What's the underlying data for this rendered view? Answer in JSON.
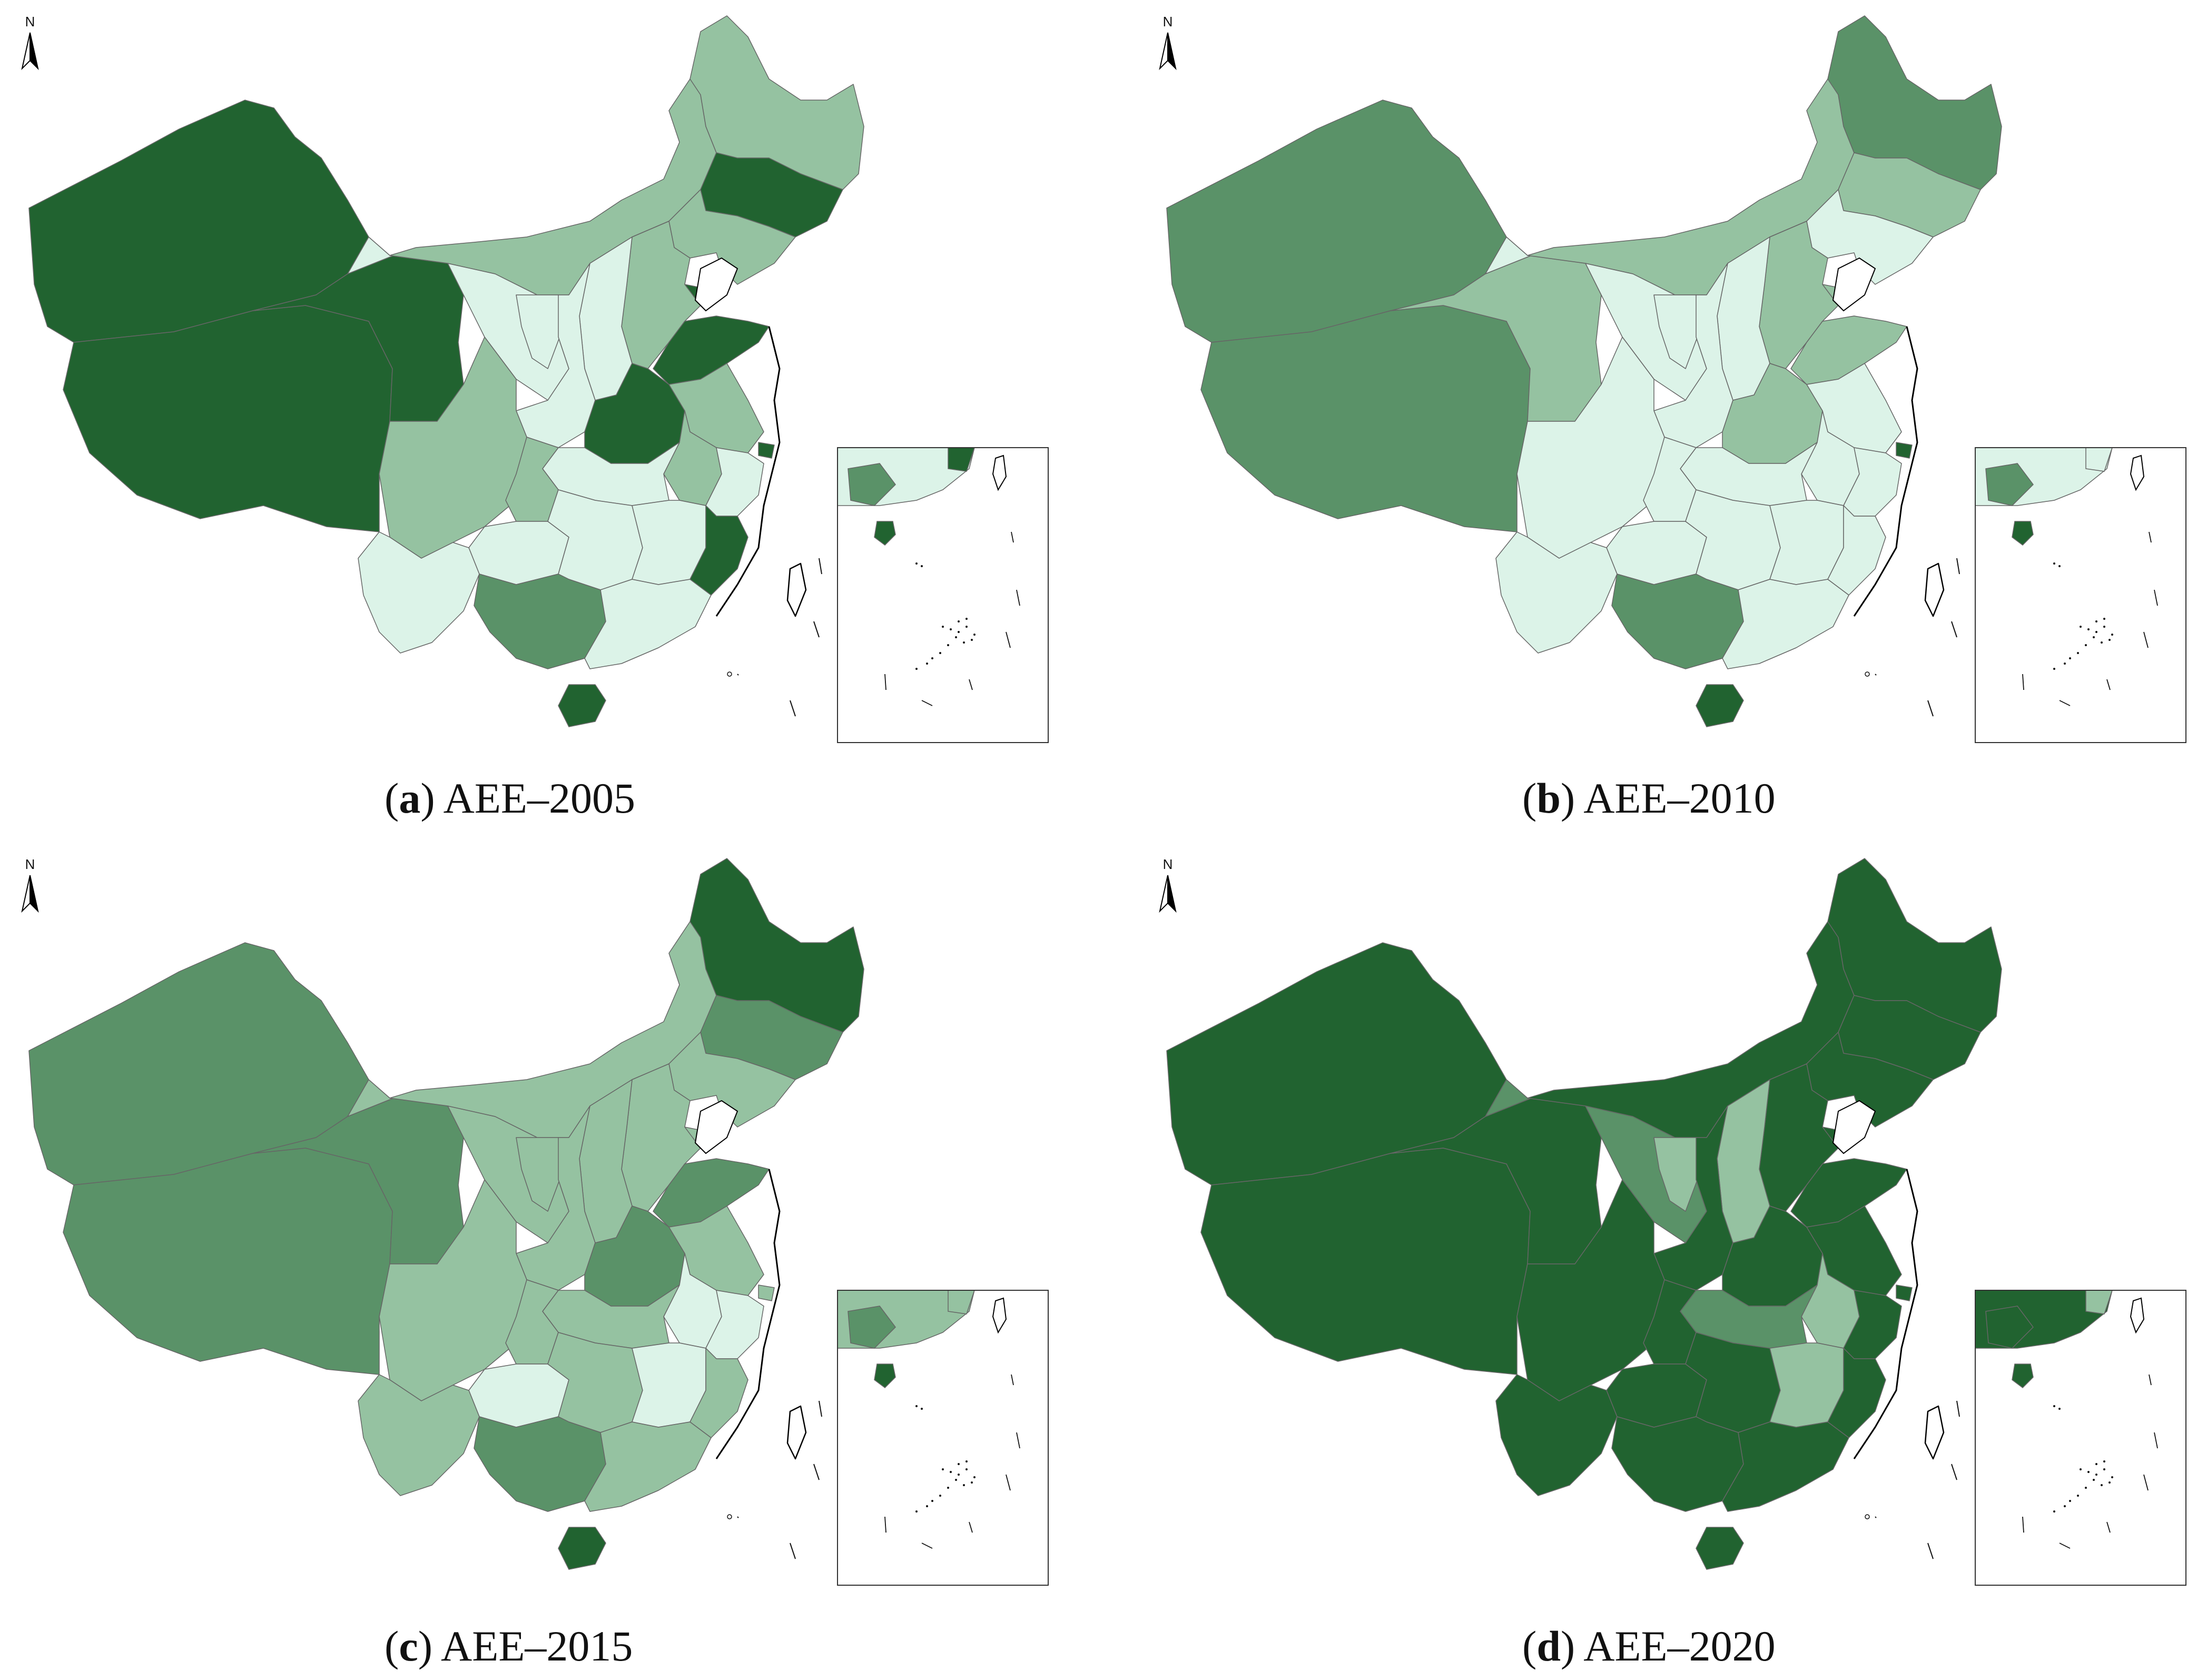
{
  "colors": {
    "very_light": "#dcf3e8",
    "light": "#95c2a1",
    "medium": "#5a9268",
    "dark": "#216330",
    "border": "#666666"
  },
  "north_arrow_label": "N",
  "panels": [
    {
      "id": "a",
      "letter": "a",
      "caption": "AEE–2005",
      "regions": {
        "xinjiang": "dark",
        "tibet": "dark",
        "qinghai": "dark",
        "gansu": "very_light",
        "inner_mongolia": "light",
        "heilongjiang": "light",
        "jilin": "dark",
        "liaoning": "light",
        "beijing": "dark",
        "tianjin": "dark",
        "hebei": "light",
        "shanxi": "very_light",
        "shaanxi": "very_light",
        "ningxia": "very_light",
        "shandong": "dark",
        "henan": "dark",
        "jiangsu": "light",
        "shanghai": "dark",
        "anhui": "light",
        "hubei": "very_light",
        "sichuan": "light",
        "chongqing": "light",
        "guizhou": "very_light",
        "yunnan": "very_light",
        "hunan": "very_light",
        "jiangxi": "very_light",
        "zhejiang": "very_light",
        "fujian": "dark",
        "guangxi": "medium",
        "guangdong": "very_light",
        "hainan": "dark",
        "taiwan": "white"
      },
      "inset": {
        "mainland": "very_light",
        "guangxi": "medium",
        "hainan": "dark",
        "fujian": "dark"
      }
    },
    {
      "id": "b",
      "letter": "b",
      "caption": "AEE–2010",
      "regions": {
        "xinjiang": "medium",
        "tibet": "medium",
        "qinghai": "light",
        "gansu": "very_light",
        "inner_mongolia": "light",
        "heilongjiang": "medium",
        "jilin": "light",
        "liaoning": "very_light",
        "beijing": "medium",
        "tianjin": "light",
        "hebei": "light",
        "shanxi": "very_light",
        "shaanxi": "very_light",
        "ningxia": "very_light",
        "shandong": "light",
        "henan": "light",
        "jiangsu": "very_light",
        "shanghai": "dark",
        "anhui": "very_light",
        "hubei": "very_light",
        "sichuan": "very_light",
        "chongqing": "very_light",
        "guizhou": "very_light",
        "yunnan": "very_light",
        "hunan": "very_light",
        "jiangxi": "very_light",
        "zhejiang": "very_light",
        "fujian": "very_light",
        "guangxi": "medium",
        "guangdong": "very_light",
        "hainan": "dark",
        "taiwan": "white"
      },
      "inset": {
        "mainland": "very_light",
        "guangxi": "medium",
        "hainan": "dark",
        "fujian": "very_light"
      }
    },
    {
      "id": "c",
      "letter": "c",
      "caption": "AEE–2015",
      "regions": {
        "xinjiang": "medium",
        "tibet": "medium",
        "qinghai": "medium",
        "gansu": "light",
        "inner_mongolia": "light",
        "heilongjiang": "dark",
        "jilin": "medium",
        "liaoning": "light",
        "beijing": "dark",
        "tianjin": "light",
        "hebei": "light",
        "shanxi": "light",
        "shaanxi": "light",
        "ningxia": "light",
        "shandong": "medium",
        "henan": "medium",
        "jiangsu": "light",
        "shanghai": "light",
        "anhui": "very_light",
        "hubei": "light",
        "sichuan": "light",
        "chongqing": "light",
        "guizhou": "very_light",
        "yunnan": "light",
        "hunan": "light",
        "jiangxi": "very_light",
        "zhejiang": "very_light",
        "fujian": "light",
        "guangxi": "medium",
        "guangdong": "light",
        "hainan": "dark",
        "taiwan": "white"
      },
      "inset": {
        "mainland": "light",
        "guangxi": "medium",
        "hainan": "dark",
        "fujian": "light"
      }
    },
    {
      "id": "d",
      "letter": "d",
      "caption": "AEE–2020",
      "regions": {
        "xinjiang": "dark",
        "tibet": "dark",
        "qinghai": "dark",
        "gansu": "medium",
        "inner_mongolia": "dark",
        "heilongjiang": "dark",
        "jilin": "dark",
        "liaoning": "dark",
        "beijing": "dark",
        "tianjin": "dark",
        "hebei": "dark",
        "shanxi": "light",
        "shaanxi": "dark",
        "ningxia": "light",
        "shandong": "dark",
        "henan": "dark",
        "jiangsu": "dark",
        "shanghai": "dark",
        "anhui": "light",
        "hubei": "medium",
        "sichuan": "dark",
        "chongqing": "dark",
        "guizhou": "dark",
        "yunnan": "dark",
        "hunan": "dark",
        "jiangxi": "light",
        "zhejiang": "dark",
        "fujian": "dark",
        "guangxi": "dark",
        "guangdong": "dark",
        "hainan": "dark",
        "taiwan": "white"
      },
      "inset": {
        "mainland": "dark",
        "guangxi": "dark",
        "hainan": "dark",
        "fujian": "light"
      }
    }
  ]
}
